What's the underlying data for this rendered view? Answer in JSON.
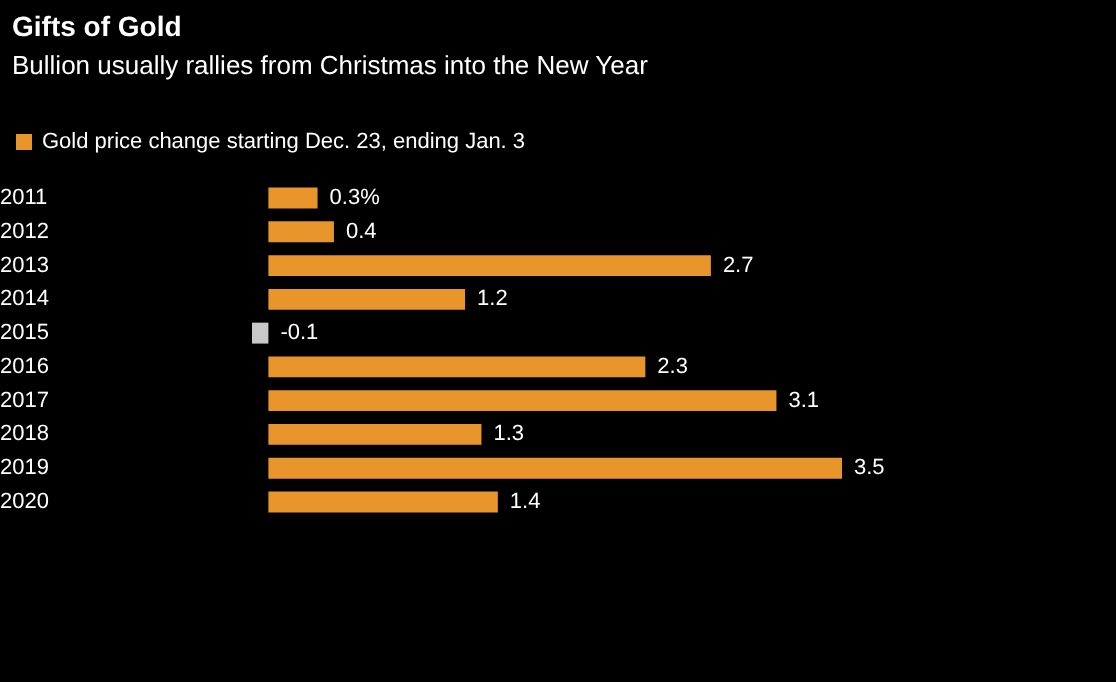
{
  "chart_data": {
    "type": "bar",
    "orientation": "horizontal",
    "title": "Gifts of Gold",
    "subtitle": "Bullion usually rallies from Christmas into the New Year",
    "legend": "top left",
    "categories": [
      "2011",
      "2012",
      "2013",
      "2014",
      "2015",
      "2016",
      "2017",
      "2018",
      "2019",
      "2020"
    ],
    "series": [
      {
        "name": "Gold price change starting Dec. 23, ending Jan. 3",
        "color": "#e8952b",
        "values": [
          0.3,
          0.4,
          2.7,
          1.2,
          -0.1,
          2.3,
          3.1,
          1.3,
          3.5,
          1.4
        ],
        "colors": [
          "#e8952b",
          "#e8952b",
          "#e8952b",
          "#e8952b",
          "#c8c8c8",
          "#e8952b",
          "#e8952b",
          "#e8952b",
          "#e8952b",
          "#e8952b"
        ],
        "value_labels": [
          "0.3%",
          "0.4",
          "2.7",
          "1.2",
          "-0.1",
          "2.3",
          "3.1",
          "1.3",
          "3.5",
          "1.4"
        ]
      }
    ]
  }
}
